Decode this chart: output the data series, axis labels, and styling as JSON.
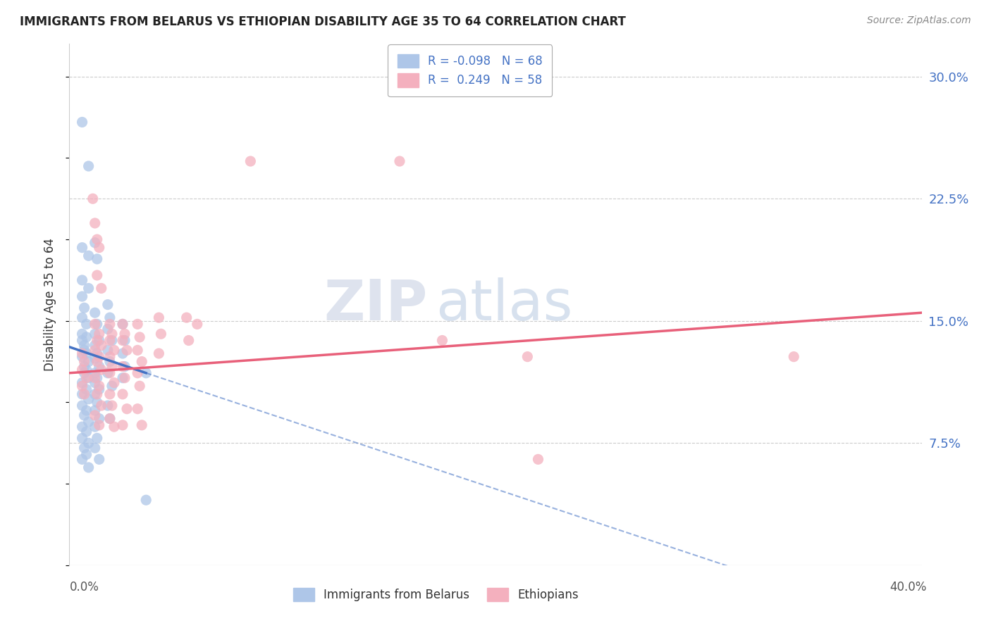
{
  "title": "IMMIGRANTS FROM BELARUS VS ETHIOPIAN DISABILITY AGE 35 TO 64 CORRELATION CHART",
  "source": "Source: ZipAtlas.com",
  "ylabel": "Disability Age 35 to 64",
  "ytick_values": [
    0.075,
    0.15,
    0.225,
    0.3
  ],
  "xlim": [
    0.0,
    0.4
  ],
  "ylim": [
    0.0,
    0.32
  ],
  "blue_color": "#aec6e8",
  "pink_color": "#f4b0be",
  "blue_line_color": "#4472c4",
  "pink_line_color": "#e8607a",
  "bel_line_solid": [
    [
      0.0,
      0.134
    ],
    [
      0.036,
      0.118
    ]
  ],
  "bel_line_dashed": [
    [
      0.036,
      0.118
    ],
    [
      0.4,
      -0.04
    ]
  ],
  "eth_line": [
    [
      0.0,
      0.118
    ],
    [
      0.4,
      0.155
    ]
  ],
  "scatter_belarus": [
    [
      0.006,
      0.272
    ],
    [
      0.009,
      0.245
    ],
    [
      0.006,
      0.195
    ],
    [
      0.009,
      0.19
    ],
    [
      0.006,
      0.175
    ],
    [
      0.009,
      0.17
    ],
    [
      0.006,
      0.165
    ],
    [
      0.007,
      0.158
    ],
    [
      0.006,
      0.152
    ],
    [
      0.008,
      0.148
    ],
    [
      0.006,
      0.142
    ],
    [
      0.008,
      0.14
    ],
    [
      0.006,
      0.138
    ],
    [
      0.007,
      0.135
    ],
    [
      0.007,
      0.132
    ],
    [
      0.008,
      0.13
    ],
    [
      0.006,
      0.128
    ],
    [
      0.009,
      0.125
    ],
    [
      0.007,
      0.122
    ],
    [
      0.008,
      0.12
    ],
    [
      0.007,
      0.118
    ],
    [
      0.009,
      0.115
    ],
    [
      0.006,
      0.112
    ],
    [
      0.008,
      0.108
    ],
    [
      0.006,
      0.105
    ],
    [
      0.009,
      0.102
    ],
    [
      0.006,
      0.098
    ],
    [
      0.008,
      0.095
    ],
    [
      0.007,
      0.092
    ],
    [
      0.009,
      0.088
    ],
    [
      0.006,
      0.085
    ],
    [
      0.008,
      0.082
    ],
    [
      0.006,
      0.078
    ],
    [
      0.009,
      0.075
    ],
    [
      0.007,
      0.072
    ],
    [
      0.008,
      0.068
    ],
    [
      0.006,
      0.065
    ],
    [
      0.009,
      0.06
    ],
    [
      0.012,
      0.198
    ],
    [
      0.013,
      0.188
    ],
    [
      0.012,
      0.155
    ],
    [
      0.013,
      0.148
    ],
    [
      0.012,
      0.142
    ],
    [
      0.014,
      0.138
    ],
    [
      0.012,
      0.135
    ],
    [
      0.013,
      0.13
    ],
    [
      0.012,
      0.127
    ],
    [
      0.014,
      0.122
    ],
    [
      0.012,
      0.118
    ],
    [
      0.013,
      0.115
    ],
    [
      0.012,
      0.112
    ],
    [
      0.014,
      0.108
    ],
    [
      0.012,
      0.105
    ],
    [
      0.013,
      0.1
    ],
    [
      0.012,
      0.095
    ],
    [
      0.014,
      0.09
    ],
    [
      0.012,
      0.085
    ],
    [
      0.013,
      0.078
    ],
    [
      0.012,
      0.072
    ],
    [
      0.014,
      0.065
    ],
    [
      0.018,
      0.16
    ],
    [
      0.019,
      0.152
    ],
    [
      0.018,
      0.145
    ],
    [
      0.02,
      0.138
    ],
    [
      0.018,
      0.132
    ],
    [
      0.019,
      0.125
    ],
    [
      0.018,
      0.118
    ],
    [
      0.02,
      0.11
    ],
    [
      0.018,
      0.098
    ],
    [
      0.019,
      0.09
    ],
    [
      0.025,
      0.148
    ],
    [
      0.026,
      0.138
    ],
    [
      0.025,
      0.13
    ],
    [
      0.026,
      0.122
    ],
    [
      0.025,
      0.115
    ],
    [
      0.036,
      0.118
    ],
    [
      0.036,
      0.04
    ]
  ],
  "scatter_ethiopian": [
    [
      0.006,
      0.13
    ],
    [
      0.007,
      0.125
    ],
    [
      0.006,
      0.12
    ],
    [
      0.008,
      0.115
    ],
    [
      0.006,
      0.11
    ],
    [
      0.007,
      0.105
    ],
    [
      0.011,
      0.225
    ],
    [
      0.013,
      0.2
    ],
    [
      0.012,
      0.21
    ],
    [
      0.014,
      0.195
    ],
    [
      0.013,
      0.178
    ],
    [
      0.015,
      0.17
    ],
    [
      0.012,
      0.148
    ],
    [
      0.014,
      0.142
    ],
    [
      0.013,
      0.138
    ],
    [
      0.015,
      0.135
    ],
    [
      0.012,
      0.132
    ],
    [
      0.014,
      0.128
    ],
    [
      0.013,
      0.125
    ],
    [
      0.015,
      0.12
    ],
    [
      0.012,
      0.115
    ],
    [
      0.014,
      0.11
    ],
    [
      0.013,
      0.105
    ],
    [
      0.015,
      0.098
    ],
    [
      0.012,
      0.092
    ],
    [
      0.014,
      0.086
    ],
    [
      0.019,
      0.148
    ],
    [
      0.02,
      0.142
    ],
    [
      0.019,
      0.138
    ],
    [
      0.021,
      0.132
    ],
    [
      0.019,
      0.128
    ],
    [
      0.02,
      0.122
    ],
    [
      0.019,
      0.118
    ],
    [
      0.021,
      0.112
    ],
    [
      0.019,
      0.105
    ],
    [
      0.02,
      0.098
    ],
    [
      0.019,
      0.09
    ],
    [
      0.021,
      0.085
    ],
    [
      0.025,
      0.148
    ],
    [
      0.026,
      0.142
    ],
    [
      0.025,
      0.138
    ],
    [
      0.027,
      0.132
    ],
    [
      0.025,
      0.122
    ],
    [
      0.026,
      0.115
    ],
    [
      0.025,
      0.105
    ],
    [
      0.027,
      0.096
    ],
    [
      0.025,
      0.086
    ],
    [
      0.032,
      0.148
    ],
    [
      0.033,
      0.14
    ],
    [
      0.032,
      0.132
    ],
    [
      0.034,
      0.125
    ],
    [
      0.032,
      0.118
    ],
    [
      0.033,
      0.11
    ],
    [
      0.032,
      0.096
    ],
    [
      0.034,
      0.086
    ],
    [
      0.042,
      0.152
    ],
    [
      0.043,
      0.142
    ],
    [
      0.042,
      0.13
    ],
    [
      0.055,
      0.152
    ],
    [
      0.056,
      0.138
    ],
    [
      0.06,
      0.148
    ],
    [
      0.085,
      0.248
    ],
    [
      0.155,
      0.248
    ],
    [
      0.175,
      0.138
    ],
    [
      0.215,
      0.128
    ],
    [
      0.22,
      0.065
    ],
    [
      0.34,
      0.128
    ]
  ]
}
